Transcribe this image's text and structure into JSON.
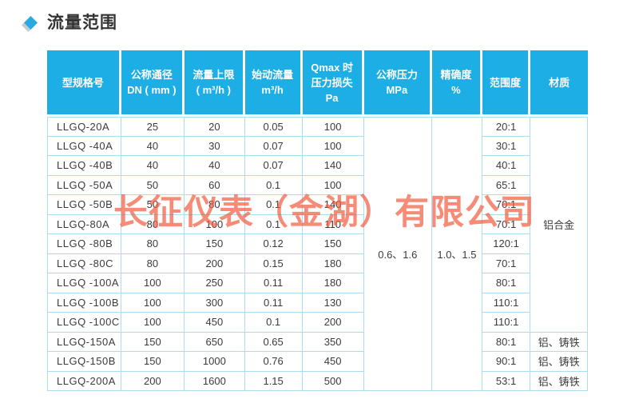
{
  "section": {
    "title": "流量范围"
  },
  "watermark": {
    "text": "长征仪表（金湖）有限公司"
  },
  "colors": {
    "header_background": "#1caee5",
    "table_border": "#abdcf2",
    "diamond_accent": "#29a9e0",
    "watermark_red": "#f25b3f",
    "body_text": "#3b3b3b"
  },
  "icons": {
    "diamond": "diamond-bullet"
  },
  "table": {
    "headers": [
      {
        "id": "model",
        "lines": [
          "型规格号"
        ]
      },
      {
        "id": "dn",
        "lines": [
          "公称通径",
          "DN ( mm )"
        ]
      },
      {
        "id": "flow_max",
        "lines": [
          "流量上限",
          "( m³/h )"
        ]
      },
      {
        "id": "start_flow",
        "lines": [
          "始动流量",
          "m³/h"
        ]
      },
      {
        "id": "pressure_loss",
        "lines": [
          "Qmax 时",
          "压力损失",
          "Pa"
        ]
      },
      {
        "id": "pressure",
        "lines": [
          "公称压力",
          "MPa"
        ]
      },
      {
        "id": "accuracy",
        "lines": [
          "精确度",
          "%"
        ]
      },
      {
        "id": "range",
        "lines": [
          "范围度"
        ]
      },
      {
        "id": "material",
        "lines": [
          "材质"
        ]
      }
    ],
    "merged": {
      "pressure": "0.6、1.6",
      "accuracy": "1.0、1.5",
      "material_top": "铝合金"
    },
    "rows": [
      {
        "model": "LLGQ-20A",
        "dn": "25",
        "flow_max": "20",
        "start_flow": "0.05",
        "pressure_loss": "100",
        "range": "20:1"
      },
      {
        "model": "LLGQ -40A",
        "dn": "40",
        "flow_max": "30",
        "start_flow": "0.07",
        "pressure_loss": "100",
        "range": "30:1"
      },
      {
        "model": "LLGQ -40B",
        "dn": "40",
        "flow_max": "40",
        "start_flow": "0.07",
        "pressure_loss": "140",
        "range": "40:1"
      },
      {
        "model": "LLGQ -50A",
        "dn": "50",
        "flow_max": "60",
        "start_flow": "0.1",
        "pressure_loss": "100",
        "range": "65:1"
      },
      {
        "model": "LLGQ -50B",
        "dn": "50",
        "flow_max": "80",
        "start_flow": "0.1",
        "pressure_loss": "140",
        "range": "70:1"
      },
      {
        "model": "LLGQ-80A",
        "dn": "80",
        "flow_max": "100",
        "start_flow": "0.1",
        "pressure_loss": "110",
        "range": "70:1"
      },
      {
        "model": "LLGQ -80B",
        "dn": "80",
        "flow_max": "150",
        "start_flow": "0.12",
        "pressure_loss": "150",
        "range": "120:1"
      },
      {
        "model": "LLGQ -80C",
        "dn": "80",
        "flow_max": "200",
        "start_flow": "0.15",
        "pressure_loss": "180",
        "range": "70:1"
      },
      {
        "model": "LLGQ -100A",
        "dn": "100",
        "flow_max": "250",
        "start_flow": "0.11",
        "pressure_loss": "180",
        "range": "80:1"
      },
      {
        "model": "LLGQ -100B",
        "dn": "100",
        "flow_max": "300",
        "start_flow": "0.11",
        "pressure_loss": "130",
        "range": "110:1"
      },
      {
        "model": "LLGQ -100C",
        "dn": "100",
        "flow_max": "450",
        "start_flow": "0.1",
        "pressure_loss": "200",
        "range": "110:1"
      },
      {
        "model": "LLGQ-150A",
        "dn": "150",
        "flow_max": "650",
        "start_flow": "0.65",
        "pressure_loss": "350",
        "range": "80:1",
        "material": "铝、铸铁"
      },
      {
        "model": "LLGQ-150B",
        "dn": "150",
        "flow_max": "1000",
        "start_flow": "0.76",
        "pressure_loss": "450",
        "range": "90:1",
        "material": "铝、铸铁"
      },
      {
        "model": "LLGQ-200A",
        "dn": "200",
        "flow_max": "1600",
        "start_flow": "1.15",
        "pressure_loss": "500",
        "range": "53:1",
        "material": "铝、铸铁"
      }
    ]
  }
}
